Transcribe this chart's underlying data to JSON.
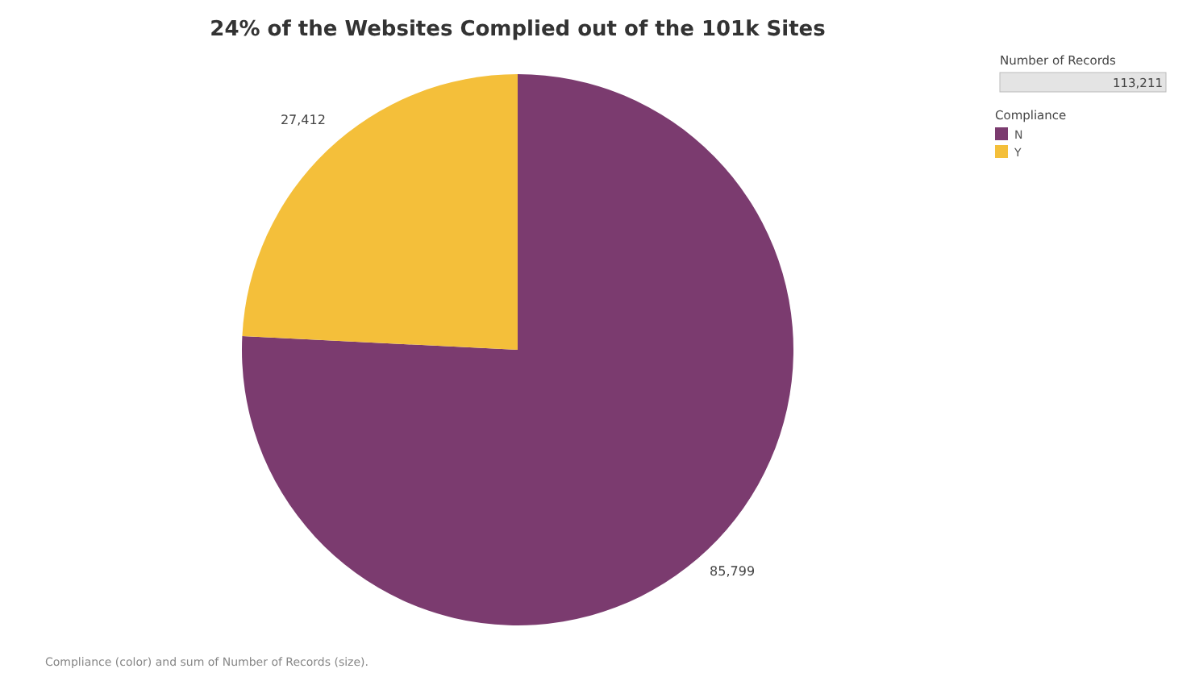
{
  "chart_data": {
    "type": "pie",
    "title": "24% of the Websites Complied out of the 101k Sites",
    "categories": [
      "N",
      "Y"
    ],
    "values": [
      85799,
      27412
    ],
    "colors": [
      "#7b3b6f",
      "#f4bf3a"
    ],
    "value_labels": [
      "85,799",
      "27,412"
    ],
    "legend": "top right",
    "legend_title": "Compliance",
    "annotations": [
      "Number of Records",
      "113,211",
      "Compliance (color) and sum of Number of Records (size)."
    ]
  }
}
